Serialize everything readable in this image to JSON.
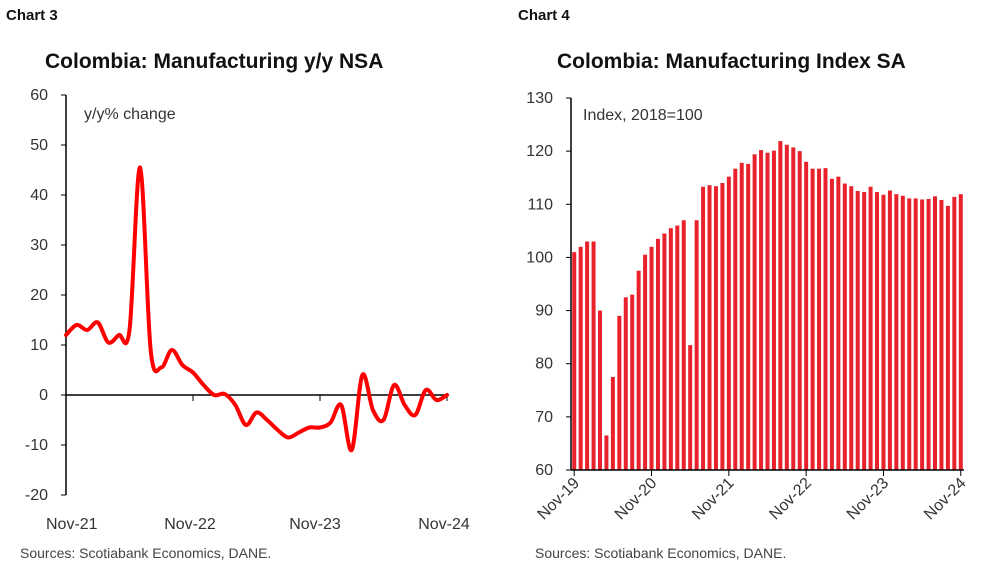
{
  "chart3": {
    "label": "Chart 3",
    "title": "Colombia: Manufacturing y/y NSA",
    "source": "Sources: Scotiabank Economics, DANE."
  },
  "chart4": {
    "label": "Chart 4",
    "title": "Colombia: Manufacturing Index SA",
    "source": "Sources: Scotiabank Economics, DANE."
  },
  "chart_data": [
    {
      "type": "line",
      "title": "Colombia: Manufacturing y/y NSA",
      "ylabel": "y/y% change",
      "ylim": [
        -20,
        60
      ],
      "yticks": [
        60,
        50,
        40,
        30,
        20,
        10,
        0,
        -10,
        -20
      ],
      "xticks": [
        "Nov-21",
        "Nov-22",
        "Nov-23",
        "Nov-24"
      ],
      "color": "#ff0000",
      "x": [
        "Nov-21",
        "Dec-21",
        "Jan-22",
        "Feb-22",
        "Mar-22",
        "Apr-22",
        "May-22",
        "Jun-22",
        "Jul-22",
        "Aug-22",
        "Sep-22",
        "Oct-22",
        "Nov-22",
        "Dec-22",
        "Jan-23",
        "Feb-23",
        "Mar-23",
        "Apr-23",
        "May-23",
        "Jun-23",
        "Jul-23",
        "Aug-23",
        "Sep-23",
        "Oct-23",
        "Nov-23",
        "Dec-23",
        "Jan-24",
        "Feb-24",
        "Mar-24",
        "Apr-24",
        "May-24",
        "Jun-24",
        "Jul-24",
        "Aug-24",
        "Sep-24",
        "Oct-24",
        "Nov-24"
      ],
      "values": [
        12,
        14,
        13,
        14.5,
        10.5,
        12,
        13,
        45.5,
        9,
        5.5,
        9,
        6,
        4.5,
        2,
        0,
        0.2,
        -2,
        -6,
        -3.5,
        -5,
        -7,
        -8.5,
        -7.5,
        -6.5,
        -6.5,
        -5.5,
        -2,
        -11,
        4,
        -3,
        -5,
        2,
        -2,
        -4,
        1,
        -1,
        0
      ]
    },
    {
      "type": "bar",
      "title": "Colombia: Manufacturing Index SA",
      "ylabel": "Index, 2018=100",
      "ylim": [
        60,
        130
      ],
      "yticks": [
        130,
        120,
        110,
        100,
        90,
        80,
        70,
        60
      ],
      "xticks": [
        "Nov-19",
        "Nov-20",
        "Nov-21",
        "Nov-22",
        "Nov-23",
        "Nov-24"
      ],
      "color": "#e8212b",
      "values": [
        101,
        102,
        103,
        103,
        90,
        66.5,
        77.5,
        89,
        92.5,
        93,
        97.5,
        100.5,
        102,
        103.5,
        104.5,
        105.5,
        106,
        107,
        83.5,
        107,
        113.3,
        113.6,
        113.4,
        114,
        115.2,
        116.7,
        117.8,
        117.6,
        119.4,
        120.2,
        119.7,
        120.1,
        121.9,
        121.2,
        120.7,
        120,
        118,
        116.7,
        116.7,
        116.8,
        114.8,
        115.2,
        113.9,
        113.4,
        112.5,
        112.3,
        113.3,
        112.3,
        111.8,
        112.6,
        111.9,
        111.6,
        111.1,
        111.1,
        110.9,
        111,
        111.5,
        110.8,
        109.7,
        111.4,
        111.9
      ]
    }
  ]
}
